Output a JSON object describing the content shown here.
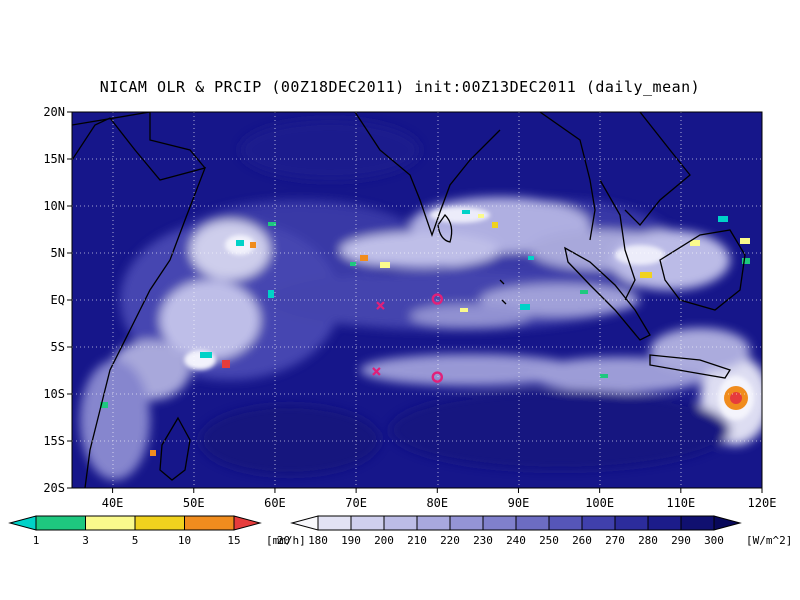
{
  "title": "NICAM OLR & PRCIP (00Z18DEC2011) init:00Z13DEC2011 (daily_mean)",
  "map": {
    "lon_range": [
      35,
      120
    ],
    "lat_range": [
      -20,
      20
    ],
    "x_ticks": [
      "40E",
      "50E",
      "60E",
      "70E",
      "80E",
      "90E",
      "100E",
      "110E",
      "120E"
    ],
    "y_ticks": [
      "20N",
      "15N",
      "10N",
      "5N",
      "EQ",
      "5S",
      "10S",
      "15S",
      "20S"
    ],
    "grid": "dotted white",
    "markers": [
      {
        "type": "x",
        "lon": 73,
        "lat": -0.6,
        "color": "#e0207a"
      },
      {
        "type": "x",
        "lon": 72.5,
        "lat": -7.6,
        "color": "#e0207a"
      },
      {
        "type": "circle",
        "lon": 80,
        "lat": 0.1,
        "color": "#e0207a"
      },
      {
        "type": "circle",
        "lon": 80,
        "lat": -8.2,
        "color": "#e0207a"
      }
    ]
  },
  "precip_colorbar": {
    "labels": [
      "1",
      "3",
      "5",
      "10",
      "15",
      "20"
    ],
    "unit": "[mm/h]",
    "colors": [
      "#00d2c8",
      "#1ec87f",
      "#fafa8c",
      "#f0d21e",
      "#f08c1e",
      "#e63c3c"
    ]
  },
  "olr_colorbar": {
    "labels": [
      "180",
      "190",
      "200",
      "210",
      "220",
      "230",
      "240",
      "250",
      "260",
      "270",
      "280",
      "290",
      "300"
    ],
    "unit": "[W/m^2]",
    "colors": [
      "#f8f8fc",
      "#e2e2f4",
      "#cfcfee",
      "#bcbce6",
      "#a8a8de",
      "#9494d6",
      "#8080cc",
      "#6c6cc2",
      "#5656b8",
      "#4040ac",
      "#2c2c9c",
      "#1c1c8a",
      "#101070",
      "#08085a"
    ]
  }
}
